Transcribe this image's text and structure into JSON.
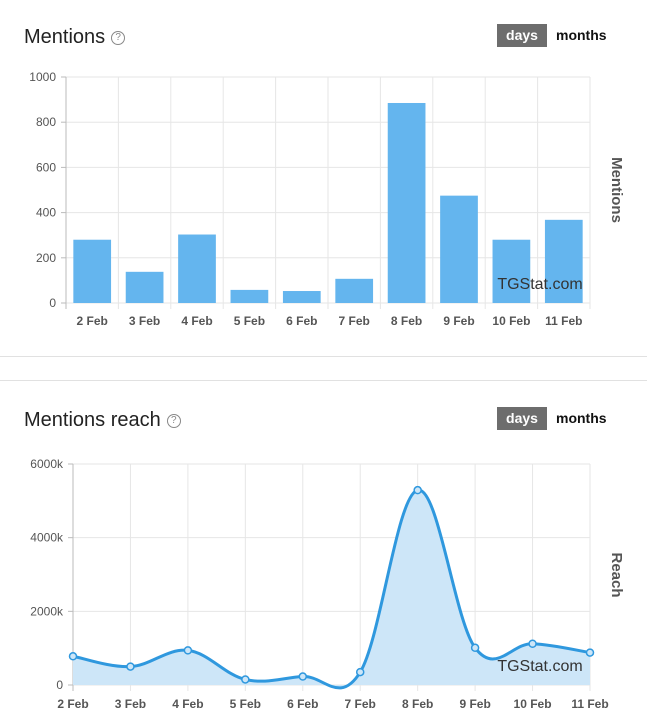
{
  "mentions": {
    "title": "Mentions",
    "help_icon": "?",
    "toggle": {
      "days": "days",
      "months": "months"
    }
  },
  "reach": {
    "title": "Mentions reach",
    "help_icon": "?",
    "toggle": {
      "days": "days",
      "months": "months"
    }
  },
  "watermark": "TGStat.com",
  "colors": {
    "bar": "#64b5ee",
    "line": "#2f98de",
    "area": "#cde6f8"
  },
  "chart_data": [
    {
      "type": "bar",
      "title": "Mentions",
      "ylabel": "Mentions",
      "xlabel": "",
      "categories": [
        "2 Feb",
        "3 Feb",
        "4 Feb",
        "5 Feb",
        "6 Feb",
        "7 Feb",
        "8 Feb",
        "9 Feb",
        "10 Feb",
        "11 Feb"
      ],
      "values": [
        280,
        138,
        303,
        58,
        53,
        107,
        885,
        475,
        280,
        368
      ],
      "ylim": [
        0,
        1000
      ],
      "yticks": [
        0,
        200,
        400,
        600,
        800,
        1000
      ],
      "ytick_labels": [
        "0",
        "200",
        "400",
        "600",
        "800",
        "1000"
      ]
    },
    {
      "type": "area",
      "title": "Mentions reach",
      "ylabel": "Reach",
      "xlabel": "",
      "categories": [
        "2 Feb",
        "3 Feb",
        "4 Feb",
        "5 Feb",
        "6 Feb",
        "7 Feb",
        "8 Feb",
        "9 Feb",
        "10 Feb",
        "11 Feb"
      ],
      "values": [
        780,
        500,
        940,
        150,
        230,
        350,
        5290,
        1010,
        1120,
        880
      ],
      "unit": "k",
      "ylim": [
        0,
        6000
      ],
      "yticks": [
        0,
        2000,
        4000,
        6000
      ],
      "ytick_labels": [
        "0",
        "2000k",
        "4000k",
        "6000k"
      ]
    }
  ]
}
